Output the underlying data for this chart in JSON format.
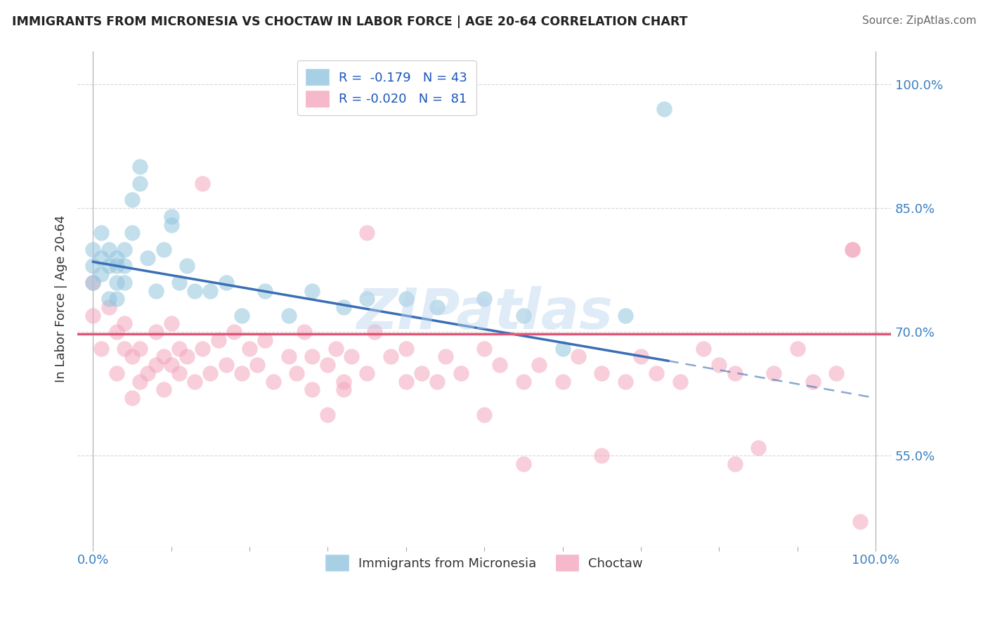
{
  "title": "IMMIGRANTS FROM MICRONESIA VS CHOCTAW IN LABOR FORCE | AGE 20-64 CORRELATION CHART",
  "source": "Source: ZipAtlas.com",
  "ylabel": "In Labor Force | Age 20-64",
  "xlim": [
    -0.02,
    1.02
  ],
  "ylim": [
    0.44,
    1.04
  ],
  "yticks": [
    0.55,
    0.7,
    0.85,
    1.0
  ],
  "ytick_labels": [
    "55.0%",
    "70.0%",
    "85.0%",
    "100.0%"
  ],
  "xticks": [
    0.0,
    0.1,
    0.2,
    0.3,
    0.4,
    0.5,
    0.6,
    0.7,
    0.8,
    0.9,
    1.0
  ],
  "xtick_edge_labels": [
    "0.0%",
    "100.0%"
  ],
  "blue_color": "#92c5de",
  "pink_color": "#f4a6be",
  "trend_blue": "#3a6eb5",
  "trend_pink": "#e05575",
  "blue_x": [
    0.0,
    0.0,
    0.0,
    0.01,
    0.01,
    0.01,
    0.02,
    0.02,
    0.02,
    0.03,
    0.03,
    0.03,
    0.03,
    0.04,
    0.04,
    0.04,
    0.05,
    0.05,
    0.06,
    0.06,
    0.07,
    0.08,
    0.09,
    0.1,
    0.1,
    0.11,
    0.12,
    0.13,
    0.15,
    0.17,
    0.19,
    0.22,
    0.25,
    0.28,
    0.32,
    0.35,
    0.4,
    0.44,
    0.5,
    0.55,
    0.6,
    0.68,
    0.73
  ],
  "blue_y": [
    0.78,
    0.8,
    0.76,
    0.82,
    0.79,
    0.77,
    0.8,
    0.78,
    0.74,
    0.79,
    0.78,
    0.76,
    0.74,
    0.8,
    0.78,
    0.76,
    0.82,
    0.86,
    0.9,
    0.88,
    0.79,
    0.75,
    0.8,
    0.84,
    0.83,
    0.76,
    0.78,
    0.75,
    0.75,
    0.76,
    0.72,
    0.75,
    0.72,
    0.75,
    0.73,
    0.74,
    0.74,
    0.73,
    0.74,
    0.72,
    0.68,
    0.72,
    0.97
  ],
  "pink_x": [
    0.0,
    0.0,
    0.01,
    0.02,
    0.03,
    0.03,
    0.04,
    0.04,
    0.05,
    0.05,
    0.06,
    0.06,
    0.07,
    0.08,
    0.08,
    0.09,
    0.09,
    0.1,
    0.1,
    0.11,
    0.11,
    0.12,
    0.13,
    0.14,
    0.15,
    0.16,
    0.17,
    0.18,
    0.19,
    0.2,
    0.21,
    0.22,
    0.23,
    0.25,
    0.26,
    0.27,
    0.28,
    0.3,
    0.31,
    0.32,
    0.33,
    0.35,
    0.36,
    0.38,
    0.4,
    0.4,
    0.42,
    0.44,
    0.45,
    0.47,
    0.5,
    0.52,
    0.55,
    0.57,
    0.6,
    0.62,
    0.65,
    0.68,
    0.7,
    0.72,
    0.75,
    0.78,
    0.8,
    0.82,
    0.85,
    0.87,
    0.9,
    0.92,
    0.95,
    0.97,
    0.98,
    0.14,
    0.35,
    0.82,
    0.97,
    0.3,
    0.32,
    0.5,
    0.55,
    0.28,
    0.65
  ],
  "pink_y": [
    0.72,
    0.76,
    0.68,
    0.73,
    0.7,
    0.65,
    0.71,
    0.68,
    0.67,
    0.62,
    0.68,
    0.64,
    0.65,
    0.7,
    0.66,
    0.67,
    0.63,
    0.66,
    0.71,
    0.65,
    0.68,
    0.67,
    0.64,
    0.68,
    0.65,
    0.69,
    0.66,
    0.7,
    0.65,
    0.68,
    0.66,
    0.69,
    0.64,
    0.67,
    0.65,
    0.7,
    0.67,
    0.66,
    0.68,
    0.64,
    0.67,
    0.65,
    0.7,
    0.67,
    0.64,
    0.68,
    0.65,
    0.64,
    0.67,
    0.65,
    0.68,
    0.66,
    0.64,
    0.66,
    0.64,
    0.67,
    0.65,
    0.64,
    0.67,
    0.65,
    0.64,
    0.68,
    0.66,
    0.65,
    0.56,
    0.65,
    0.68,
    0.64,
    0.65,
    0.8,
    0.47,
    0.88,
    0.82,
    0.54,
    0.8,
    0.6,
    0.63,
    0.6,
    0.54,
    0.63,
    0.55
  ],
  "trend_blue_x0": 0.0,
  "trend_blue_y0": 0.785,
  "trend_blue_x1": 0.735,
  "trend_blue_y1": 0.665,
  "trend_blue_dash_x1": 1.0,
  "trend_blue_dash_y1": 0.62,
  "trend_pink_y": 0.698,
  "watermark": "ZIPatlas",
  "background_color": "#ffffff",
  "grid_color": "#d8d8d8"
}
